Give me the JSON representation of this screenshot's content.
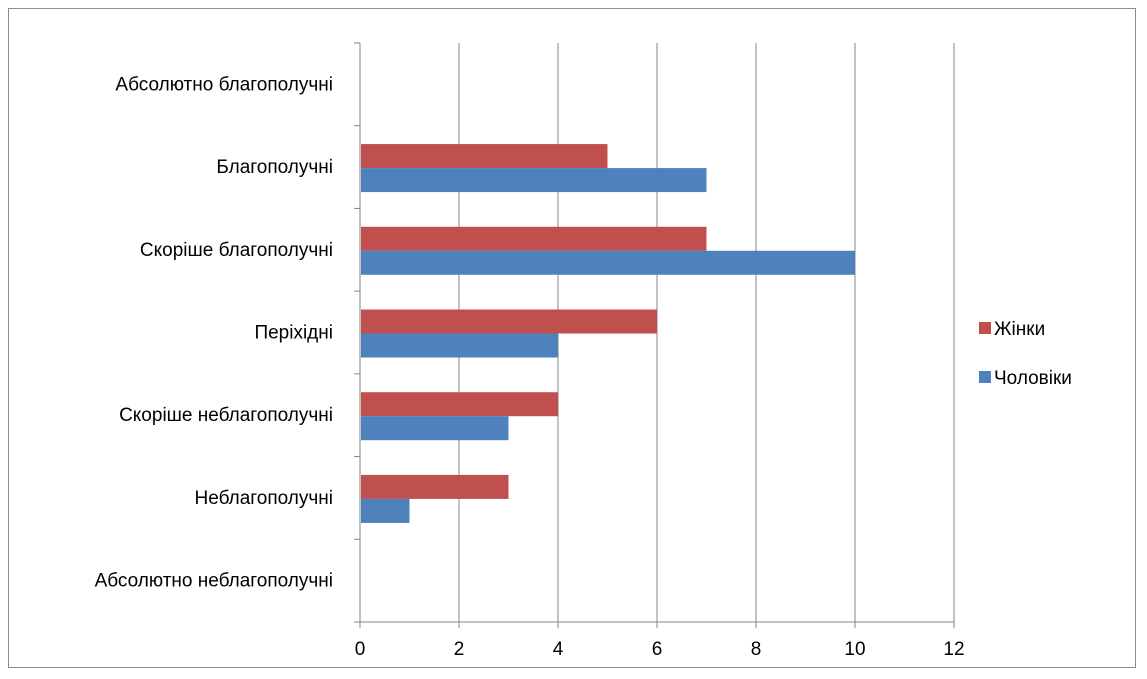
{
  "chart_data": {
    "type": "bar",
    "orientation": "horizontal",
    "categories": [
      "Абсолютно благополучні",
      "Благополучні",
      "Скоріше благополучні",
      "Періхідні",
      "Скоріше неблагополучні",
      "Неблагополучні",
      "Абсолютно неблагополучні"
    ],
    "series": [
      {
        "name": "Жінки",
        "color": "#c0504d",
        "values": [
          0,
          5,
          7,
          6,
          4,
          3,
          0
        ]
      },
      {
        "name": "Чоловіки",
        "color": "#4f81bd",
        "values": [
          0,
          7,
          10,
          4,
          3,
          1,
          0
        ]
      }
    ],
    "xlim": [
      0,
      12
    ],
    "xticks": [
      "0",
      "2",
      "4",
      "6",
      "8",
      "10",
      "12"
    ],
    "grid": true,
    "legend": "right",
    "title": "",
    "xlabel": "",
    "ylabel": ""
  }
}
